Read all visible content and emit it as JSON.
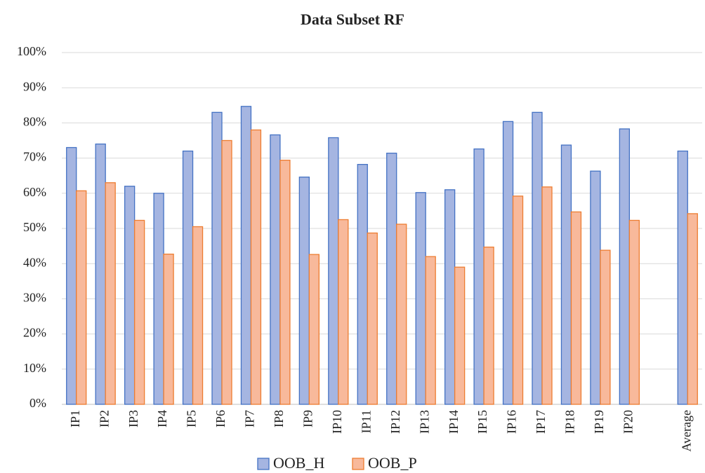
{
  "chart_data": {
    "type": "bar",
    "title": "Data Subset RF",
    "categories": [
      "IP1",
      "IP2",
      "IP3",
      "IP4",
      "IP5",
      "IP6",
      "IP7",
      "IP8",
      "IP9",
      "IP10",
      "IP11",
      "IP12",
      "IP13",
      "IP14",
      "IP15",
      "IP16",
      "IP17",
      "IP18",
      "IP19",
      "IP20",
      null,
      "Average"
    ],
    "series": [
      {
        "name": "OOB_H",
        "color": "#a5b5e1",
        "edgecolor": "#4472c4",
        "values": [
          73,
          74,
          62,
          60,
          72,
          83,
          84.7,
          76.6,
          64.6,
          75.8,
          68.2,
          71.4,
          60.2,
          61,
          72.6,
          80.4,
          83,
          73.7,
          66.3,
          78.3,
          null,
          72
        ]
      },
      {
        "name": "OOB_P",
        "color": "#f8b99b",
        "edgecolor": "#ed7d31",
        "values": [
          60.7,
          63,
          52.3,
          42.7,
          50.5,
          75,
          78,
          69.4,
          42.6,
          52.5,
          48.7,
          51.2,
          42,
          39,
          44.7,
          59.2,
          61.8,
          54.7,
          43.8,
          52.3,
          null,
          54.2
        ]
      }
    ],
    "ylim": [
      0,
      100
    ],
    "yticks": [
      {
        "value": 0,
        "label": "0%"
      },
      {
        "value": 10,
        "label": "10%"
      },
      {
        "value": 20,
        "label": "20%"
      },
      {
        "value": 30,
        "label": "30%"
      },
      {
        "value": 40,
        "label": "40%"
      },
      {
        "value": 50,
        "label": "50%"
      },
      {
        "value": 60,
        "label": "60%"
      },
      {
        "value": 70,
        "label": "70%"
      },
      {
        "value": 80,
        "label": "80%"
      },
      {
        "value": 90,
        "label": "90%"
      },
      {
        "value": 100,
        "label": "100%"
      }
    ],
    "grid": true,
    "legend": "bottom"
  }
}
